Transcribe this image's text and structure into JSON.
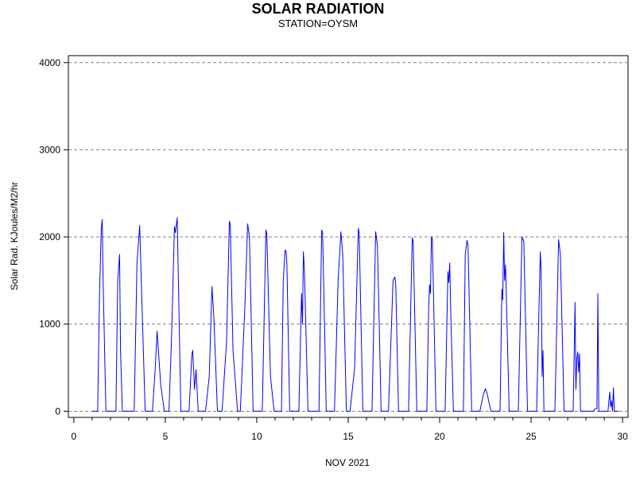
{
  "chart_data": {
    "type": "line",
    "title": "SOLAR RADIATION",
    "subtitle": "STATION=OYSM",
    "xlabel": "NOV 2021",
    "ylabel": "Solar Rad. KJoules/M2/hr",
    "xlim": [
      -0.3,
      30.3
    ],
    "ylim": [
      -70,
      4080
    ],
    "x_ticks": [
      0,
      5,
      10,
      15,
      20,
      25,
      30
    ],
    "y_ticks": [
      0,
      1000,
      2000,
      3000,
      4000
    ],
    "grid": "horizontal dashed",
    "colors": {
      "line": "#0000ff",
      "grid": "#808080",
      "axis": "#000000"
    },
    "series": [
      {
        "x": [
          1.0,
          1.3,
          1.4,
          1.5,
          1.55,
          1.6,
          1.75,
          1.9,
          2.3,
          2.4,
          2.5,
          2.55,
          2.65,
          2.8,
          3.0,
          3.3,
          3.45,
          3.6,
          3.7,
          3.9,
          4.1,
          4.3,
          4.45,
          4.55,
          4.75,
          4.95,
          5.2,
          5.35,
          5.5,
          5.55,
          5.65,
          5.85,
          6.05,
          6.3,
          6.45,
          6.5,
          6.6,
          6.68,
          6.8,
          7.0,
          7.2,
          7.4,
          7.55,
          7.65,
          7.85,
          8.1,
          8.35,
          8.5,
          8.55,
          8.7,
          8.95,
          9.1,
          9.35,
          9.5,
          9.6,
          9.8,
          10.05,
          10.3,
          10.5,
          10.55,
          10.75,
          10.95,
          11.15,
          11.35,
          11.45,
          11.55,
          11.6,
          11.65,
          11.8,
          12.0,
          12.3,
          12.45,
          12.5,
          12.55,
          12.6,
          12.8,
          13.1,
          13.4,
          13.55,
          13.6,
          13.8,
          14.0,
          14.25,
          14.45,
          14.6,
          14.7,
          14.9,
          15.1,
          15.35,
          15.55,
          15.6,
          15.8,
          16.0,
          16.3,
          16.5,
          16.6,
          16.8,
          17.0,
          17.2,
          17.45,
          17.55,
          17.6,
          17.75,
          18.0,
          18.3,
          18.5,
          18.55,
          18.75,
          19.0,
          19.3,
          19.4,
          19.45,
          19.5,
          19.55,
          19.6,
          19.8,
          20.0,
          20.3,
          20.45,
          20.5,
          20.55,
          20.6,
          20.75,
          21.0,
          21.3,
          21.4,
          21.5,
          21.55,
          21.75,
          22.0,
          22.2,
          22.4,
          22.5,
          22.6,
          22.8,
          23.1,
          23.3,
          23.4,
          23.45,
          23.5,
          23.55,
          23.6,
          23.8,
          24.0,
          24.3,
          24.45,
          24.5,
          24.6,
          24.8,
          25.0,
          25.3,
          25.5,
          25.55,
          25.6,
          25.65,
          25.7,
          25.8,
          26.0,
          26.3,
          26.5,
          26.6,
          26.8,
          27.0,
          27.3,
          27.4,
          27.45,
          27.5,
          27.55,
          27.6,
          27.65,
          27.7,
          27.75,
          27.9,
          28.2,
          28.4,
          28.5,
          28.6,
          28.65,
          28.7,
          28.8,
          29.0,
          29.2,
          29.3,
          29.35,
          29.4,
          29.45,
          29.5,
          29.55,
          29.6,
          29.8
        ],
        "y": [
          0,
          0,
          1300,
          2100,
          2200,
          1500,
          0,
          0,
          0,
          1500,
          1800,
          700,
          0,
          0,
          0,
          0,
          1700,
          2130,
          1400,
          0,
          0,
          0,
          500,
          920,
          300,
          0,
          0,
          900,
          2120,
          2050,
          2220,
          0,
          0,
          0,
          650,
          700,
          250,
          480,
          0,
          0,
          0,
          400,
          1430,
          1100,
          0,
          0,
          800,
          2180,
          2150,
          700,
          0,
          0,
          1200,
          2150,
          2000,
          0,
          0,
          0,
          2080,
          2040,
          400,
          0,
          0,
          0,
          1500,
          1850,
          1840,
          1680,
          0,
          0,
          0,
          1350,
          1000,
          1830,
          1650,
          0,
          0,
          0,
          2080,
          2050,
          0,
          0,
          0,
          1500,
          2060,
          1800,
          0,
          0,
          500,
          2100,
          2050,
          0,
          0,
          0,
          2060,
          1900,
          0,
          0,
          0,
          1500,
          1540,
          1450,
          0,
          0,
          0,
          1990,
          1950,
          0,
          0,
          0,
          1200,
          1450,
          1350,
          2000,
          1980,
          0,
          0,
          0,
          1600,
          1480,
          1700,
          1200,
          0,
          0,
          0,
          1800,
          1960,
          1900,
          0,
          0,
          0,
          200,
          260,
          200,
          0,
          0,
          0,
          1400,
          1280,
          2050,
          1500,
          1680,
          0,
          0,
          0,
          1500,
          2000,
          1950,
          0,
          0,
          0,
          1830,
          1600,
          400,
          700,
          0,
          0,
          0,
          0,
          1970,
          1800,
          0,
          0,
          0,
          1250,
          250,
          600,
          680,
          450,
          660,
          0,
          0,
          0,
          0,
          0,
          30,
          30,
          1350,
          0,
          0,
          0,
          0,
          220,
          50,
          120,
          0,
          270,
          0,
          0,
          0
        ]
      }
    ]
  }
}
